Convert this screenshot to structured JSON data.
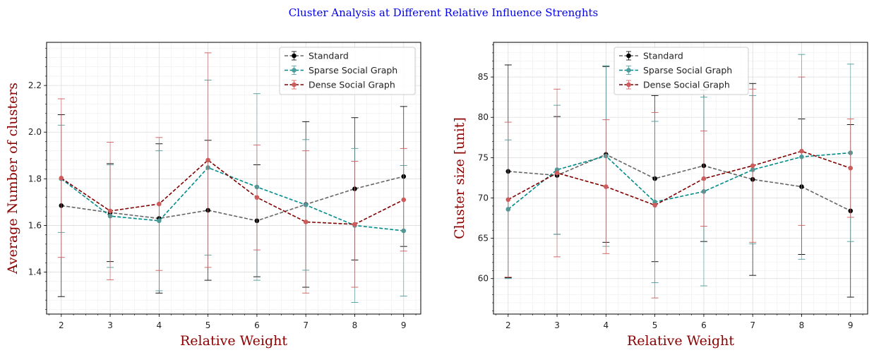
{
  "suptitle": "Cluster Analysis at Different Relative Influence Strenghts",
  "colors": {
    "suptitle": "#0000ee",
    "axis_label": "#8b0000",
    "standard": "#666666",
    "standard_marker": "#000000",
    "sparse": "#008b8b",
    "sparse_marker": "#4f9a9a",
    "dense": "#800000",
    "dense_marker": "#cd5c5c"
  },
  "chart_data": [
    {
      "type": "line",
      "with_error_bars": true,
      "xlabel": "Relative Weight",
      "ylabel": "Average Number of clusters",
      "x": [
        2,
        3,
        4,
        5,
        6,
        7,
        8,
        9
      ],
      "xlim": [
        1.7,
        9.35
      ],
      "ylim": [
        1.22,
        2.385
      ],
      "xticks": [
        "2",
        "3",
        "4",
        "5",
        "6",
        "7",
        "8",
        "9"
      ],
      "yticks": [
        "1.4",
        "1.6",
        "1.8",
        "2.0",
        "2.2"
      ],
      "ytick_values": [
        1.4,
        1.6,
        1.8,
        2.0,
        2.2
      ],
      "grid": true,
      "legend_position": "top-right",
      "series": [
        {
          "name": "Standard",
          "values": [
            1.685,
            1.655,
            1.63,
            1.665,
            1.62,
            1.69,
            1.757,
            1.81
          ],
          "err": [
            0.39,
            0.21,
            0.32,
            0.3,
            0.24,
            0.355,
            0.305,
            0.3
          ]
        },
        {
          "name": "Sparse Social Graph",
          "values": [
            1.8,
            1.64,
            1.62,
            1.848,
            1.765,
            1.688,
            1.6,
            1.577
          ],
          "err": [
            0.23,
            0.22,
            0.3,
            0.375,
            0.4,
            0.28,
            0.33,
            0.28
          ]
        },
        {
          "name": "Dense Social Graph",
          "values": [
            1.803,
            1.662,
            1.692,
            1.88,
            1.72,
            1.615,
            1.605,
            1.71
          ],
          "err": [
            0.34,
            0.295,
            0.285,
            0.46,
            0.225,
            0.305,
            0.27,
            0.22
          ]
        }
      ]
    },
    {
      "type": "line",
      "with_error_bars": true,
      "xlabel": "Relative Weight",
      "ylabel": "Cluster size [unit]",
      "x": [
        2,
        3,
        4,
        5,
        6,
        7,
        8,
        9
      ],
      "xlim": [
        1.7,
        9.35
      ],
      "ylim": [
        55.6,
        89.3
      ],
      "xticks": [
        "2",
        "3",
        "4",
        "5",
        "6",
        "7",
        "8",
        "9"
      ],
      "yticks": [
        "60",
        "65",
        "70",
        "75",
        "80",
        "85"
      ],
      "ytick_values": [
        60,
        65,
        70,
        75,
        80,
        85
      ],
      "grid": true,
      "legend_position": "top-center",
      "series": [
        {
          "name": "Standard",
          "values": [
            73.3,
            72.8,
            75.4,
            72.4,
            74.0,
            72.3,
            71.4,
            68.4
          ],
          "err": [
            13.2,
            7.3,
            10.9,
            10.3,
            9.4,
            11.9,
            8.4,
            10.7
          ]
        },
        {
          "name": "Sparse Social Graph",
          "values": [
            68.6,
            73.5,
            75.2,
            69.5,
            70.8,
            73.5,
            75.1,
            75.6
          ],
          "err": [
            8.6,
            8.0,
            11.2,
            10.0,
            11.7,
            9.2,
            12.7,
            11.0
          ]
        },
        {
          "name": "Dense Social Graph",
          "values": [
            69.8,
            73.1,
            71.4,
            69.1,
            72.4,
            74.0,
            75.8,
            73.7
          ],
          "err": [
            9.6,
            10.4,
            8.3,
            11.5,
            5.9,
            9.5,
            9.2,
            6.1
          ]
        }
      ]
    }
  ]
}
